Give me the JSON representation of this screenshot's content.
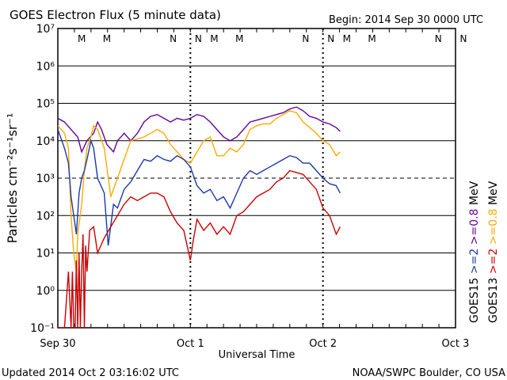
{
  "chart_data": {
    "type": "line",
    "title": "GOES Electron Flux (5 minute data)",
    "begin_label": "Begin: 2014 Sep 30 0000 UTC",
    "xlabel": "Universal Time",
    "ylabel": "Particles cm⁻²s⁻¹sr⁻¹",
    "x_ticks": [
      "Sep 30",
      "Oct 1",
      "Oct 2",
      "Oct 3"
    ],
    "xlim_days": [
      0,
      3
    ],
    "ylim_log10": [
      -1,
      7
    ],
    "y_ticks": [
      "10⁻¹",
      "10⁰",
      "10¹",
      "10²",
      "10³",
      "10⁴",
      "10⁵",
      "10⁶",
      "10⁷"
    ],
    "threshold_log10": 3,
    "markers": [
      {
        "label": "M",
        "x_day": 0.18,
        "color": "#cc0000"
      },
      {
        "label": "M",
        "x_day": 0.37,
        "color": "#1a3aa8"
      },
      {
        "label": "N",
        "x_day": 0.87,
        "color": "#cc0000"
      },
      {
        "label": "N",
        "x_day": 1.06,
        "color": "#1a3aa8"
      },
      {
        "label": "M",
        "x_day": 1.18,
        "color": "#cc0000"
      },
      {
        "label": "M",
        "x_day": 1.37,
        "color": "#1a3aa8"
      },
      {
        "label": "N",
        "x_day": 1.87,
        "color": "#cc0000"
      },
      {
        "label": "N",
        "x_day": 2.06,
        "color": "#1a3aa8"
      },
      {
        "label": "M",
        "x_day": 2.18,
        "color": "#cc0000"
      },
      {
        "label": "M",
        "x_day": 2.37,
        "color": "#1a3aa8"
      },
      {
        "label": "N",
        "x_day": 2.87,
        "color": "#cc0000"
      },
      {
        "label": "N",
        "x_day": 3.06,
        "color": "#1a3aa8"
      }
    ],
    "legend": [
      {
        "prefix": "GOES15",
        "text": ">=2",
        "color": "#1a3aa8"
      },
      {
        "prefix": "",
        "text": ">=0.8",
        "color": "#660099"
      },
      {
        "prefix": "GOES13",
        "text": ">=2",
        "color": "#cc0000"
      },
      {
        "prefix": "",
        "text": ">=0.8",
        "color": "#ffaa00"
      }
    ],
    "legend_units": [
      "MeV",
      "MeV"
    ],
    "series": [
      {
        "name": "GOES15 >=0.8 MeV",
        "color": "#660099",
        "x": [
          0.0,
          0.05,
          0.1,
          0.15,
          0.18,
          0.22,
          0.27,
          0.3,
          0.33,
          0.37,
          0.42,
          0.45,
          0.5,
          0.55,
          0.6,
          0.65,
          0.7,
          0.75,
          0.8,
          0.85,
          0.9,
          0.95,
          1.0,
          1.05,
          1.1,
          1.15,
          1.2,
          1.25,
          1.3,
          1.35,
          1.4,
          1.45,
          1.5,
          1.55,
          1.6,
          1.65,
          1.7,
          1.75,
          1.8,
          1.85,
          1.9,
          1.95,
          2.0,
          2.05,
          2.1,
          2.13
        ],
        "y": [
          4.6,
          4.5,
          4.3,
          4.1,
          3.7,
          4.0,
          4.2,
          4.5,
          4.3,
          3.9,
          3.7,
          4.0,
          4.2,
          4.0,
          4.2,
          4.5,
          4.65,
          4.7,
          4.6,
          4.5,
          4.6,
          4.55,
          4.6,
          4.7,
          4.65,
          4.5,
          4.3,
          4.1,
          4.0,
          4.1,
          4.3,
          4.5,
          4.55,
          4.6,
          4.65,
          4.7,
          4.75,
          4.85,
          4.9,
          4.8,
          4.65,
          4.6,
          4.5,
          4.45,
          4.35,
          4.25
        ]
      },
      {
        "name": "GOES13 >=0.8 MeV",
        "color": "#ffaa00",
        "x": [
          0.0,
          0.05,
          0.08,
          0.1,
          0.12,
          0.14,
          0.15,
          0.18,
          0.2,
          0.22,
          0.25,
          0.27,
          0.3,
          0.35,
          0.4,
          0.45,
          0.5,
          0.55,
          0.6,
          0.65,
          0.7,
          0.75,
          0.8,
          0.85,
          0.9,
          0.95,
          1.0,
          1.05,
          1.1,
          1.15,
          1.2,
          1.25,
          1.3,
          1.35,
          1.4,
          1.45,
          1.5,
          1.55,
          1.6,
          1.65,
          1.7,
          1.75,
          1.8,
          1.85,
          1.9,
          1.95,
          2.0,
          2.05,
          2.1,
          2.13
        ],
        "y": [
          4.4,
          4.2,
          3.8,
          2.0,
          1.0,
          0.5,
          1.5,
          2.3,
          3.2,
          3.8,
          4.1,
          4.4,
          4.3,
          3.8,
          2.5,
          3.0,
          3.5,
          4.0,
          4.05,
          4.1,
          4.2,
          4.3,
          4.2,
          3.9,
          3.7,
          3.5,
          3.4,
          3.7,
          4.0,
          4.1,
          3.6,
          3.6,
          3.8,
          3.7,
          3.9,
          4.3,
          4.4,
          4.45,
          4.45,
          4.6,
          4.7,
          4.8,
          4.75,
          4.5,
          4.35,
          4.2,
          4.0,
          3.9,
          3.6,
          3.7
        ]
      },
      {
        "name": "GOES15 >=2 MeV",
        "color": "#1a3aa8",
        "x": [
          0.0,
          0.05,
          0.08,
          0.1,
          0.12,
          0.14,
          0.16,
          0.18,
          0.2,
          0.22,
          0.25,
          0.27,
          0.3,
          0.35,
          0.38,
          0.42,
          0.45,
          0.5,
          0.55,
          0.6,
          0.65,
          0.7,
          0.75,
          0.8,
          0.85,
          0.9,
          0.95,
          1.0,
          1.05,
          1.1,
          1.15,
          1.2,
          1.25,
          1.3,
          1.35,
          1.4,
          1.45,
          1.5,
          1.55,
          1.6,
          1.65,
          1.7,
          1.75,
          1.8,
          1.85,
          1.9,
          1.95,
          2.0,
          2.05,
          2.1,
          2.13
        ],
        "y": [
          4.3,
          3.8,
          3.4,
          2.5,
          2.0,
          1.5,
          2.6,
          3.0,
          3.2,
          3.5,
          4.0,
          3.8,
          3.0,
          2.6,
          1.2,
          2.3,
          2.2,
          2.7,
          2.9,
          3.2,
          3.5,
          3.45,
          3.6,
          3.5,
          3.45,
          3.6,
          3.5,
          3.3,
          2.8,
          2.6,
          2.7,
          2.4,
          2.5,
          2.2,
          2.6,
          3.0,
          3.2,
          3.1,
          3.2,
          3.3,
          3.4,
          3.5,
          3.6,
          3.55,
          3.4,
          3.4,
          3.2,
          3.0,
          2.85,
          2.8,
          2.6
        ]
      },
      {
        "name": "GOES13 >=2 MeV",
        "color": "#cc0000",
        "x": [
          0.0,
          0.05,
          0.08,
          0.1,
          0.11,
          0.12,
          0.13,
          0.14,
          0.15,
          0.16,
          0.17,
          0.18,
          0.19,
          0.2,
          0.21,
          0.22,
          0.24,
          0.27,
          0.3,
          0.35,
          0.4,
          0.45,
          0.5,
          0.55,
          0.6,
          0.65,
          0.7,
          0.75,
          0.8,
          0.85,
          0.9,
          0.95,
          1.0,
          1.02,
          1.05,
          1.1,
          1.15,
          1.2,
          1.25,
          1.3,
          1.35,
          1.4,
          1.45,
          1.5,
          1.55,
          1.6,
          1.65,
          1.7,
          1.75,
          1.8,
          1.85,
          1.9,
          1.95,
          2.0,
          2.05,
          2.1,
          2.13
        ],
        "y": [
          -1,
          -1,
          0.5,
          -1,
          0.5,
          -1,
          -1,
          0.8,
          -1,
          1.0,
          -1,
          0.5,
          1.5,
          -1,
          1.2,
          0.5,
          1.6,
          1.7,
          1.0,
          1.4,
          1.7,
          2.0,
          2.3,
          2.5,
          2.4,
          2.5,
          2.6,
          2.6,
          2.5,
          2.1,
          1.8,
          1.6,
          0.8,
          1.3,
          1.9,
          1.6,
          1.8,
          1.5,
          1.7,
          1.5,
          2.0,
          2.1,
          2.3,
          2.5,
          2.6,
          2.7,
          2.9,
          3.0,
          3.2,
          3.15,
          3.1,
          2.9,
          2.7,
          2.2,
          2.0,
          1.5,
          1.7
        ]
      }
    ]
  },
  "footer": {
    "updated": "Updated 2014 Oct  2 03:16:02 UTC",
    "source": "NOAA/SWPC Boulder, CO USA"
  }
}
